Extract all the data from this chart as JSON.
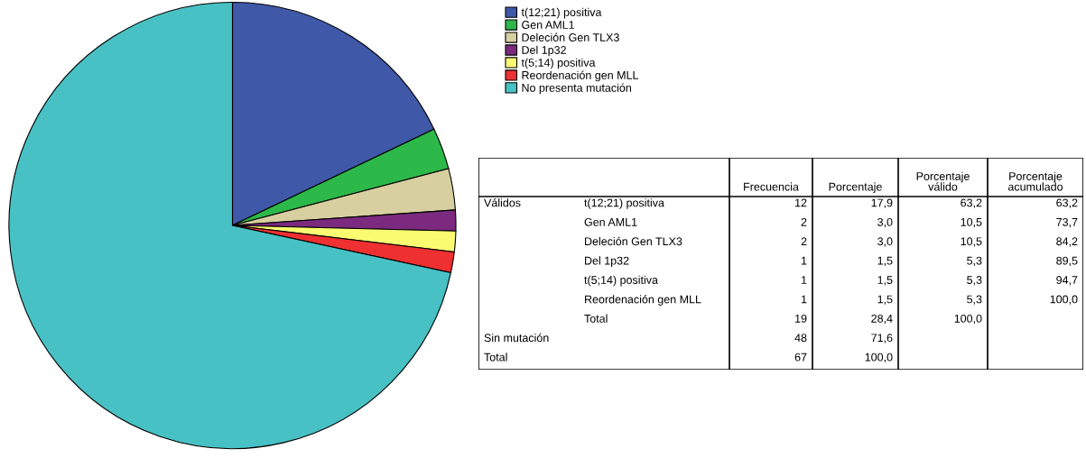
{
  "chart_data": [
    {
      "type": "pie",
      "categories": [
        "t(12;21) positiva",
        "Gen AML1",
        "Deleción Gen TLX3",
        "Del 1p32",
        "t(5;14) positiva",
        "Reordenación gen MLL",
        "No presenta mutación"
      ],
      "values": [
        17.9,
        3.0,
        3.0,
        1.5,
        1.5,
        1.5,
        71.6
      ],
      "colors": [
        "#3f58a8",
        "#2db84a",
        "#d8cfa0",
        "#7b2a7f",
        "#fbfb72",
        "#ee3030",
        "#48c1c5"
      ],
      "legend": "top right"
    },
    {
      "type": "other",
      "categories": [
        "Frecuencia",
        "Porcentaje",
        "Porcentaje\nválido",
        "Porcentaje\nacumulado"
      ],
      "y_categories": [
        "Válidos",
        null,
        null,
        null,
        null,
        null,
        null,
        "Sin mutación",
        "Total"
      ],
      "y2_categories": [
        "t(12;21) positiva",
        "Gen AML1",
        "Deleción Gen TLX3",
        "Del 1p32",
        "t(5;14) positiva",
        "Reordenación gen MLL",
        "Total",
        null,
        null
      ],
      "cell_labels": [
        [
          "12",
          "17,9",
          "63,2",
          "63,2"
        ],
        [
          "2",
          "3,0",
          "10,5",
          "73,7"
        ],
        [
          "2",
          "3,0",
          "10,5",
          "84,2"
        ],
        [
          "1",
          "1,5",
          "5,3",
          "89,5"
        ],
        [
          "1",
          "1,5",
          "5,3",
          "94,7"
        ],
        [
          "1",
          "1,5",
          "5,3",
          "100,0"
        ],
        [
          "19",
          "28,4",
          "100,0",
          null
        ],
        [
          "48",
          "71,6",
          null,
          null
        ],
        [
          "67",
          "100,0",
          null,
          null
        ]
      ]
    }
  ]
}
